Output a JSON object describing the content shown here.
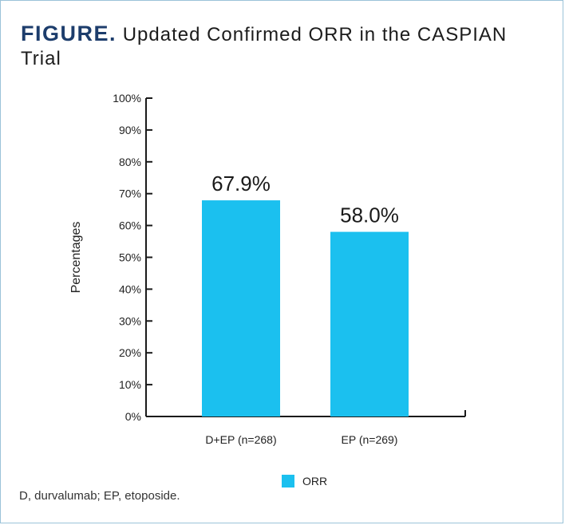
{
  "figure": {
    "label": "FIGURE.",
    "title": "Updated Confirmed ORR in the CASPIAN Trial"
  },
  "footnote": "D, durvalumab; EP, etoposide.",
  "colors": {
    "bar": "#1bc0ef",
    "axis": "#1a1a1a",
    "title_label": "#1d3d6c",
    "frame": "#9bc3d9"
  },
  "chart_data": {
    "type": "bar",
    "categories": [
      "D+EP (n=268)",
      "EP (n=269)"
    ],
    "series": [
      {
        "name": "ORR",
        "values": [
          67.9,
          58.0
        ],
        "color": "#1bc0ef"
      }
    ],
    "data_labels": [
      "67.9%",
      "58.0%"
    ],
    "ylabel": "Percentages",
    "xlabel": "",
    "ylim": [
      0,
      100
    ],
    "yticks": [
      0,
      10,
      20,
      30,
      40,
      50,
      60,
      70,
      80,
      90,
      100
    ],
    "ytick_labels": [
      "0%",
      "10%",
      "20%",
      "30%",
      "40%",
      "50%",
      "60%",
      "70%",
      "80%",
      "90%",
      "100%"
    ],
    "grid": false,
    "legend": {
      "position": "bottom-center",
      "entries": [
        "ORR"
      ]
    }
  }
}
